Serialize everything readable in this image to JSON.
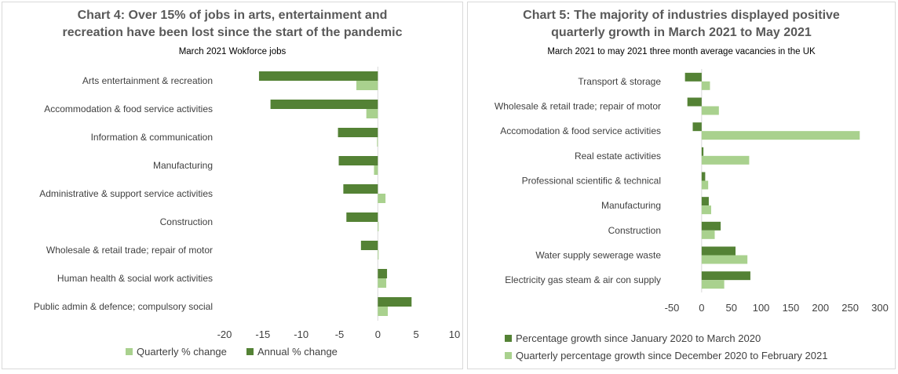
{
  "colors": {
    "annual": "#548235",
    "quarterly": "#a9d18e",
    "axis": "#d9d9d9",
    "label": "#404040"
  },
  "chart_data": [
    {
      "type": "bar",
      "orientation": "horizontal",
      "title_line1": "Chart 4: Over 15% of jobs in arts, entertainment and",
      "title_line2": "recreation have been lost since the start of the pandemic",
      "subtitle": "March 2021 Wokforce jobs",
      "categories": [
        "Arts entertainment & recreation",
        "Accommodation & food service activities",
        "Information & communication",
        "Manufacturing",
        "Administrative & support service activities",
        "Construction",
        "Wholesale & retail trade; repair of motor",
        "Human health & social work activities",
        "Public admin & defence; compulsory social"
      ],
      "series": [
        {
          "name": "Quarterly % change",
          "values": [
            -2.8,
            -1.5,
            -0.1,
            -0.5,
            1.0,
            0.1,
            0.1,
            1.1,
            1.3
          ]
        },
        {
          "name": "Annual % change",
          "values": [
            -15.5,
            -14.0,
            -5.2,
            -5.1,
            -4.5,
            -4.1,
            -2.2,
            1.2,
            4.4
          ]
        }
      ],
      "xlim": [
        -20,
        10
      ],
      "xticks": [
        -20,
        -15,
        -10,
        -5,
        0,
        5,
        10
      ],
      "legend": "bottom"
    },
    {
      "type": "bar",
      "orientation": "horizontal",
      "title_line1": "Chart 5: The majority of industries displayed positive",
      "title_line2": "quarterly growth in March 2021 to May 2021",
      "subtitle": "March 2021 to may 2021 three month average vacancies in the UK",
      "categories": [
        "Transport & storage",
        "Wholesale & retail trade; repair of motor",
        "Accomodation & food service activities",
        "Real estate activities",
        "Professional scientific & technical",
        "Manufacturing",
        "Construction",
        "Water supply sewerage waste",
        "Electricity gas steam & air con supply"
      ],
      "series": [
        {
          "name": "Percentage growth since January 2020 to March 2020",
          "values": [
            -28,
            -24,
            -15,
            3,
            6,
            12,
            32,
            57,
            82
          ]
        },
        {
          "name": "Quarterly percentage growth since December 2020 to February 2021",
          "values": [
            14,
            29,
            266,
            80,
            11,
            16,
            22,
            77,
            38
          ]
        }
      ],
      "xlim": [
        -50,
        300
      ],
      "xticks": [
        -50,
        0,
        50,
        100,
        150,
        200,
        250,
        300
      ],
      "legend": "bottom"
    }
  ]
}
